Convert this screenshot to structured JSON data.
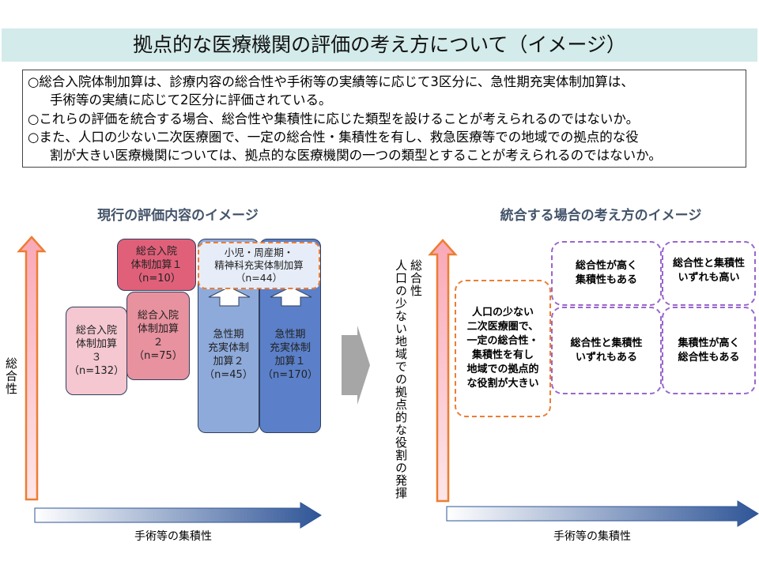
{
  "title": "拠点的な医療機関の評価の考え方について（イメージ）",
  "bullets": [
    "○総合入院体制加算は、診療内容の総合性や手術等の実績等に応じて3区分に、急性期充実体制加算は、",
    "手術等の実績に応じて2区分に評価されている。",
    "○これらの評価を統合する場合、総合性や集積性に応じた類型を設けることが考えられるのではないか。",
    "○また、人口の少ない二次医療圏で、一定の総合性・集積性を有し、救急医療等での地域での拠点的な役",
    "割が大きい医療機関については、拠点的な医療機関の一つの類型とすることが考えられるのではないか。"
  ],
  "left": {
    "heading": "現行の評価内容のイメージ",
    "y_axis": "総合性",
    "x_axis": "手術等の集積性",
    "boxes": {
      "sogo1": [
        "総合入院",
        "体制加算１",
        "（n=10）"
      ],
      "sogo2": [
        "総合入院",
        "体制加算",
        "２",
        "（n=75）"
      ],
      "sogo3": [
        "総合入院",
        "体制加算",
        "３",
        "（n=132）"
      ],
      "kyusei2": [
        "急性期",
        "充実体制",
        "加算２",
        "（n=45）"
      ],
      "kyusei1": [
        "急性期",
        "充実体制",
        "加算１",
        "（n=170）"
      ],
      "shoni": [
        "小児・周産期・",
        "精神科充実体制加算",
        "（n=44）"
      ]
    },
    "colors": {
      "sogo1": "#e0607a",
      "sogo2": "#e8919f",
      "sogo3": "#f4c7d1",
      "kyusei2": "#8eaadb",
      "kyusei1": "#5b80c9"
    }
  },
  "right": {
    "heading": "統合する場合の考え方のイメージ",
    "y_axis_1": "総合性",
    "y_axis_2": "人口の少ない地域での拠点的な役割の発揮",
    "x_axis": "手術等の集積性",
    "regional": [
      "人口の少ない",
      "二次医療圏で、",
      "一定の総合性・",
      "集積性を有し",
      "地域での拠点的",
      "な役割が大きい"
    ],
    "quadrants": {
      "top_left": [
        "総合性が高く",
        "集積性もある"
      ],
      "top_right": [
        "総合性と集積性",
        "いずれも高い"
      ],
      "bottom_left": [
        "総合性と集積性",
        "いずれもある"
      ],
      "bottom_right": [
        "集積性が高く",
        "総合性もある"
      ]
    }
  }
}
